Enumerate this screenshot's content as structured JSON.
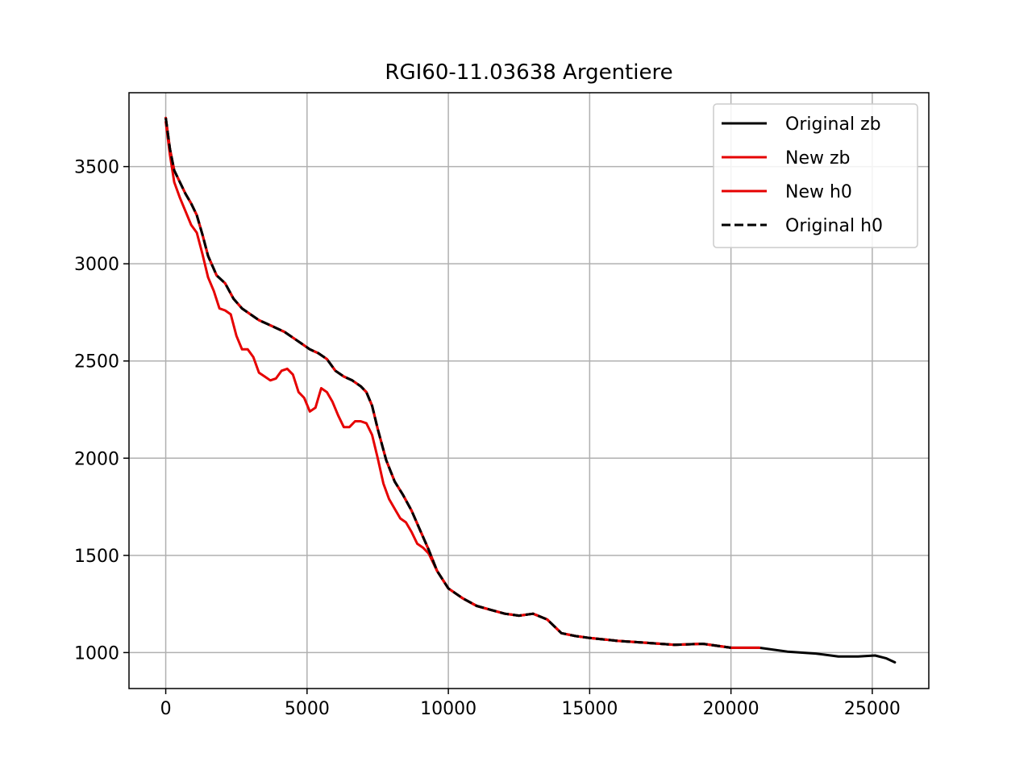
{
  "chart_data": {
    "type": "line",
    "title": "RGI60-11.03638 Argentiere",
    "xlabel": "",
    "ylabel": "",
    "xlim": [
      -1300,
      27000
    ],
    "ylim": [
      815,
      3880
    ],
    "xticks": [
      0,
      5000,
      10000,
      15000,
      20000,
      25000
    ],
    "yticks": [
      1000,
      1500,
      2000,
      2500,
      3000,
      3500
    ],
    "grid": true,
    "legend_position": "top-right",
    "legend": [
      "Original zb",
      "New zb",
      "New h0",
      "Original h0"
    ],
    "series": [
      {
        "name": "Original zb",
        "color": "#000000",
        "style": "solid",
        "x": [
          0,
          150,
          300,
          500,
          700,
          900,
          1100,
          1300,
          1500,
          1800,
          2100,
          2400,
          2700,
          3000,
          3300,
          3600,
          3900,
          4200,
          4500,
          4800,
          5100,
          5400,
          5700,
          6000,
          6300,
          6600,
          6900,
          7100,
          7300,
          7500,
          7800,
          8100,
          8400,
          8700,
          9000,
          9300,
          9600,
          10000,
          10500,
          11000,
          11500,
          12000,
          12500,
          13000,
          13500,
          14000,
          14500,
          15000,
          16000,
          17000,
          18000,
          19000,
          20000,
          21000,
          22000,
          23000,
          23800,
          24500,
          25100,
          25500,
          25800
        ],
        "values": [
          3750,
          3590,
          3480,
          3420,
          3360,
          3310,
          3250,
          3150,
          3040,
          2940,
          2900,
          2820,
          2770,
          2740,
          2710,
          2690,
          2670,
          2650,
          2620,
          2590,
          2560,
          2540,
          2510,
          2450,
          2420,
          2400,
          2370,
          2340,
          2270,
          2150,
          1990,
          1880,
          1810,
          1730,
          1630,
          1530,
          1420,
          1330,
          1280,
          1240,
          1220,
          1200,
          1190,
          1200,
          1170,
          1100,
          1085,
          1075,
          1060,
          1050,
          1040,
          1045,
          1025,
          1025,
          1005,
          995,
          980,
          980,
          985,
          970,
          950
        ]
      },
      {
        "name": "New zb",
        "color": "#e60000",
        "style": "solid",
        "x": [
          0,
          150,
          300,
          500,
          700,
          900,
          1100,
          1300,
          1500,
          1700,
          1900,
          2100,
          2300,
          2500,
          2700,
          2900,
          3100,
          3300,
          3500,
          3700,
          3900,
          4100,
          4300,
          4500,
          4700,
          4900,
          5100,
          5300,
          5500,
          5700,
          5900,
          6100,
          6300,
          6500,
          6700,
          6900,
          7100,
          7300,
          7500,
          7700,
          7900,
          8100,
          8300,
          8500,
          8700,
          8900,
          9100,
          9300,
          9600,
          10000,
          10500,
          11000,
          11500,
          12000,
          12500,
          13000,
          13500,
          14000,
          14500,
          15000,
          16000,
          17000,
          18000,
          19000,
          20000,
          21000
        ],
        "values": [
          3730,
          3560,
          3420,
          3340,
          3270,
          3200,
          3160,
          3050,
          2930,
          2860,
          2770,
          2760,
          2740,
          2630,
          2560,
          2560,
          2520,
          2440,
          2420,
          2400,
          2410,
          2450,
          2460,
          2430,
          2340,
          2310,
          2240,
          2260,
          2360,
          2340,
          2290,
          2220,
          2160,
          2160,
          2190,
          2190,
          2180,
          2120,
          2000,
          1870,
          1790,
          1740,
          1690,
          1670,
          1620,
          1560,
          1540,
          1510,
          1420,
          1330,
          1280,
          1240,
          1220,
          1200,
          1190,
          1200,
          1170,
          1100,
          1085,
          1075,
          1060,
          1050,
          1040,
          1045,
          1025,
          1025
        ]
      },
      {
        "name": "New h0",
        "color": "#e60000",
        "style": "solid",
        "x": [
          0,
          150,
          300,
          500,
          700,
          900,
          1100,
          1300,
          1500,
          1800,
          2100,
          2400,
          2700,
          3000,
          3300,
          3600,
          3900,
          4200,
          4500,
          4800,
          5100,
          5400,
          5700,
          6000,
          6300,
          6600,
          6900,
          7100,
          7300,
          7500,
          7800,
          8100,
          8400,
          8700,
          9000,
          9300,
          9600,
          10000,
          10500,
          11000,
          11500,
          12000,
          12500,
          13000,
          13500,
          14000,
          14500,
          15000,
          16000,
          17000,
          18000,
          19000,
          20000
        ],
        "values": [
          3750,
          3590,
          3480,
          3420,
          3360,
          3310,
          3250,
          3150,
          3040,
          2940,
          2900,
          2820,
          2770,
          2740,
          2710,
          2690,
          2670,
          2650,
          2620,
          2590,
          2560,
          2540,
          2510,
          2450,
          2420,
          2400,
          2370,
          2340,
          2270,
          2150,
          1990,
          1880,
          1810,
          1730,
          1630,
          1530,
          1420,
          1330,
          1280,
          1240,
          1220,
          1200,
          1190,
          1200,
          1170,
          1100,
          1085,
          1075,
          1060,
          1050,
          1040,
          1045,
          1025
        ]
      },
      {
        "name": "Original h0",
        "color": "#000000",
        "style": "dashed",
        "x": [
          0,
          150,
          300,
          500,
          700,
          900,
          1100,
          1300,
          1500,
          1800,
          2100,
          2400,
          2700,
          3000,
          3300,
          3600,
          3900,
          4200,
          4500,
          4800,
          5100,
          5400,
          5700,
          6000,
          6300,
          6600,
          6900,
          7100,
          7300,
          7500,
          7800,
          8100,
          8400,
          8700,
          9000,
          9300,
          9600,
          10000,
          10500,
          11000,
          11500,
          12000,
          12500,
          13000,
          13500,
          14000,
          14500,
          15000,
          16000,
          17000,
          18000,
          19000,
          20000
        ],
        "values": [
          3750,
          3590,
          3480,
          3420,
          3360,
          3310,
          3250,
          3150,
          3040,
          2940,
          2900,
          2820,
          2770,
          2740,
          2710,
          2690,
          2670,
          2650,
          2620,
          2590,
          2560,
          2540,
          2510,
          2450,
          2420,
          2400,
          2370,
          2340,
          2270,
          2150,
          1990,
          1880,
          1810,
          1730,
          1630,
          1530,
          1420,
          1330,
          1280,
          1240,
          1220,
          1200,
          1190,
          1200,
          1170,
          1100,
          1085,
          1075,
          1060,
          1050,
          1040,
          1045,
          1025
        ]
      }
    ]
  }
}
